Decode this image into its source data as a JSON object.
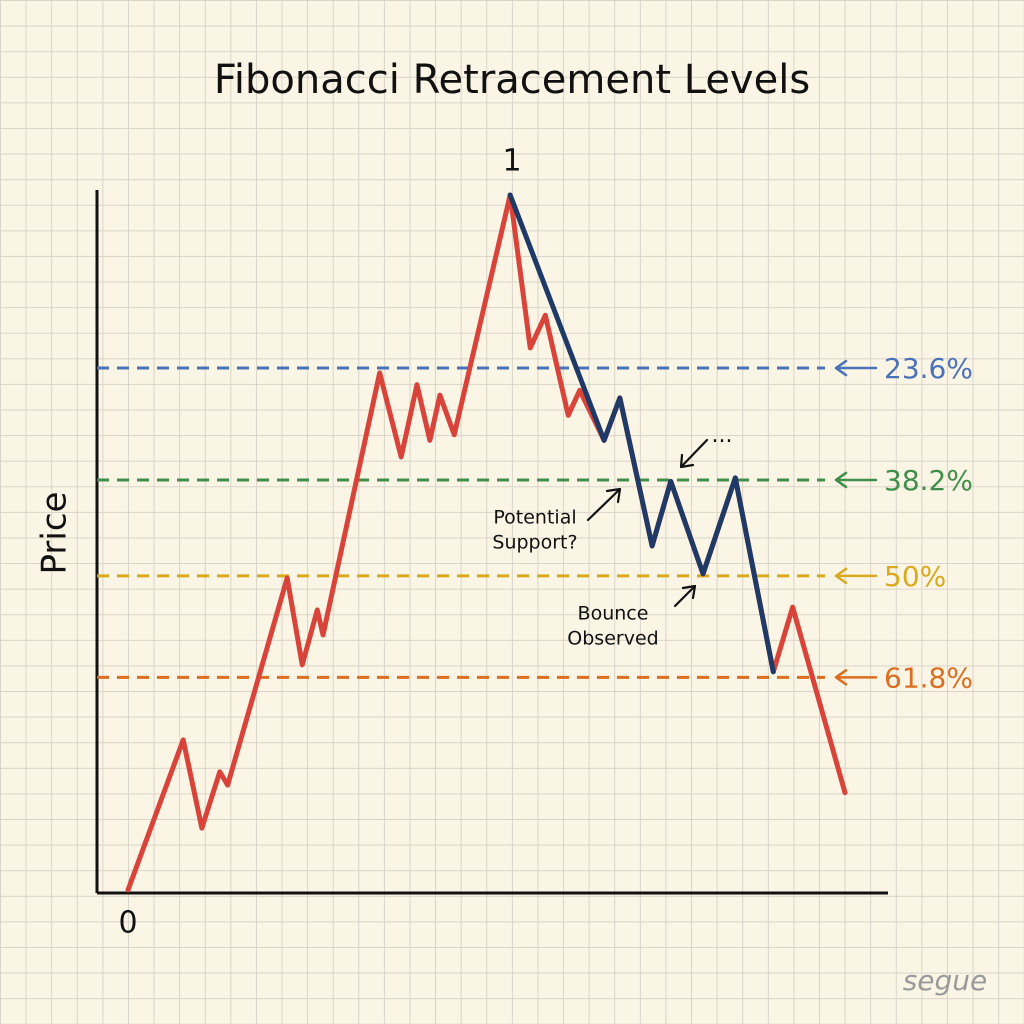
{
  "chart_data": {
    "type": "line",
    "title": "Fibonacci Retracement Levels",
    "ylabel": "Price",
    "start_label": "0",
    "peak_label": "1",
    "xlim": [
      0,
      100
    ],
    "ylim": [
      0,
      1
    ],
    "series": [
      {
        "color": "#d9443a",
        "x": [
          0,
          7.7,
          10.3,
          12.8,
          13.9,
          22.2,
          24.3,
          26.4,
          27.2,
          35.1,
          38.1,
          40.3,
          42.1,
          43.5,
          45.5,
          53.3,
          56.1,
          58.2,
          61.4,
          63.0,
          66.4,
          68.6,
          73.1,
          75.7,
          80.2,
          84.7,
          90.0,
          92.7,
          100
        ],
        "values": [
          0,
          0.216,
          0.089,
          0.17,
          0.151,
          0.449,
          0.324,
          0.403,
          0.367,
          0.744,
          0.623,
          0.727,
          0.647,
          0.712,
          0.655,
          1,
          0.78,
          0.827,
          0.683,
          0.719,
          0.647,
          0.708,
          0.495,
          0.588,
          0.455,
          0.593,
          0.314,
          0.407,
          0.14
        ]
      },
      {
        "color": "#1f3a66",
        "x": [
          53.3,
          66.4,
          68.6,
          73.1,
          75.7,
          80.2,
          84.7,
          90.0
        ],
        "values": [
          1,
          0.647,
          0.708,
          0.495,
          0.588,
          0.455,
          0.593,
          0.314
        ]
      }
    ],
    "levels": [
      {
        "label": "23.6%",
        "value": 0.751,
        "color": "#4a72b8"
      },
      {
        "label": "38.2%",
        "value": 0.59,
        "color": "#3f8f4a"
      },
      {
        "label": "50%",
        "value": 0.452,
        "color": "#d9aa1e"
      },
      {
        "label": "61.8%",
        "value": 0.306,
        "color": "#dc6e20"
      }
    ],
    "annotations": [
      [
        "..."
      ],
      [
        "Potential",
        "Support?"
      ],
      [
        "Bounce",
        "Observed"
      ]
    ],
    "watermark": "segue"
  }
}
